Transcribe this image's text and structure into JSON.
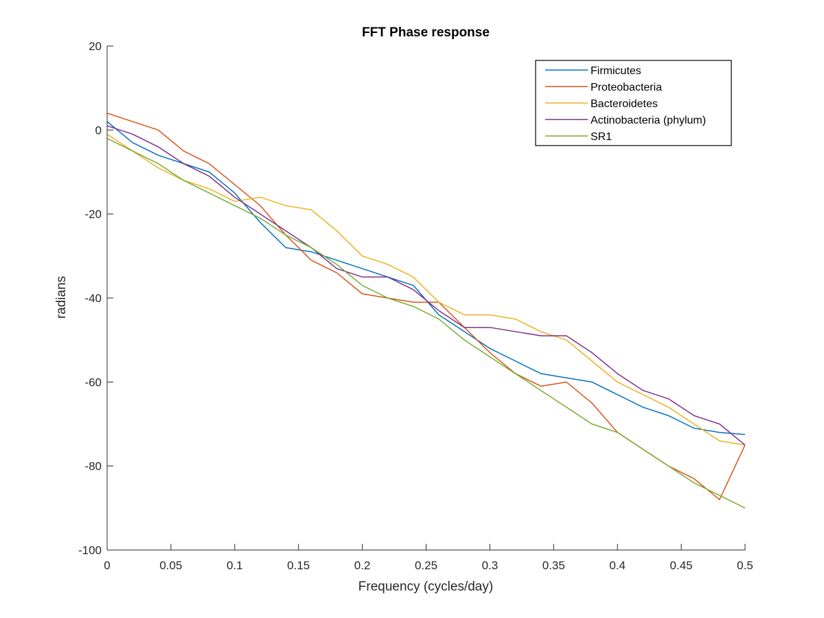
{
  "chart_data": {
    "type": "line",
    "title": "FFT Phase response",
    "xlabel": "Frequency (cycles/day)",
    "ylabel": "radians",
    "xlim": [
      0,
      0.5
    ],
    "ylim": [
      -100,
      20
    ],
    "xticks": [
      0,
      0.05,
      0.1,
      0.15,
      0.2,
      0.25,
      0.3,
      0.35,
      0.4,
      0.45,
      0.5
    ],
    "xtick_labels": [
      "0",
      "0.05",
      "0.1",
      "0.15",
      "0.2",
      "0.25",
      "0.3",
      "0.35",
      "0.4",
      "0.45",
      "0.5"
    ],
    "yticks": [
      20,
      0,
      -20,
      -40,
      -60,
      -80,
      -100
    ],
    "ytick_labels": [
      "20",
      "0",
      "-20",
      "-40",
      "-60",
      "-80",
      "-100"
    ],
    "grid": false,
    "legend_position": "top-right",
    "x": [
      0,
      0.02,
      0.04,
      0.06,
      0.08,
      0.1,
      0.12,
      0.14,
      0.16,
      0.18,
      0.2,
      0.22,
      0.24,
      0.26,
      0.28,
      0.3,
      0.32,
      0.34,
      0.36,
      0.38,
      0.4,
      0.42,
      0.44,
      0.46,
      0.48,
      0.5
    ],
    "series": [
      {
        "name": "Firmicutes",
        "color": "#0072BD",
        "values": [
          2,
          -3,
          -6,
          -8,
          -10,
          -15,
          -22,
          -28,
          -29,
          -31,
          -33,
          -35,
          -37,
          -44,
          -48,
          -52,
          -55,
          -58,
          -59,
          -60,
          -63,
          -66,
          -68,
          -71,
          -72,
          -72.5
        ]
      },
      {
        "name": "Proteobacteria",
        "color": "#D95319",
        "values": [
          4,
          2,
          0,
          -5,
          -8,
          -13,
          -18,
          -25,
          -31,
          -34,
          -39,
          -40,
          -41,
          -41,
          -47,
          -53,
          -58,
          -61,
          -60,
          -65,
          -72,
          -76,
          -80,
          -83,
          -88,
          -75
        ]
      },
      {
        "name": "Bacteroidetes",
        "color": "#EDB120",
        "values": [
          -1,
          -5,
          -9,
          -12,
          -14,
          -17,
          -16,
          -18,
          -19,
          -24,
          -30,
          -32,
          -35,
          -41,
          -44,
          -44,
          -45,
          -48,
          -50,
          -55,
          -60,
          -63,
          -66,
          -70,
          -74,
          -75
        ]
      },
      {
        "name": "Actinobacteria (phylum)",
        "color": "#7E2F8E",
        "values": [
          1,
          -1,
          -4,
          -8,
          -11,
          -16,
          -20,
          -24,
          -28,
          -33,
          -35,
          -35,
          -38,
          -43,
          -47,
          -47,
          -48,
          -49,
          -49,
          -53,
          -58,
          -62,
          -64,
          -68,
          -70,
          -75
        ]
      },
      {
        "name": "SR1",
        "color": "#77AC30",
        "values": [
          -2,
          -5,
          -8,
          -12,
          -15,
          -18,
          -21,
          -25,
          -28,
          -32,
          -37,
          -40,
          -42,
          -45,
          -50,
          -54,
          -58,
          -62,
          -66,
          -70,
          -72,
          -76,
          -80,
          -84,
          -87,
          -90
        ]
      }
    ]
  }
}
